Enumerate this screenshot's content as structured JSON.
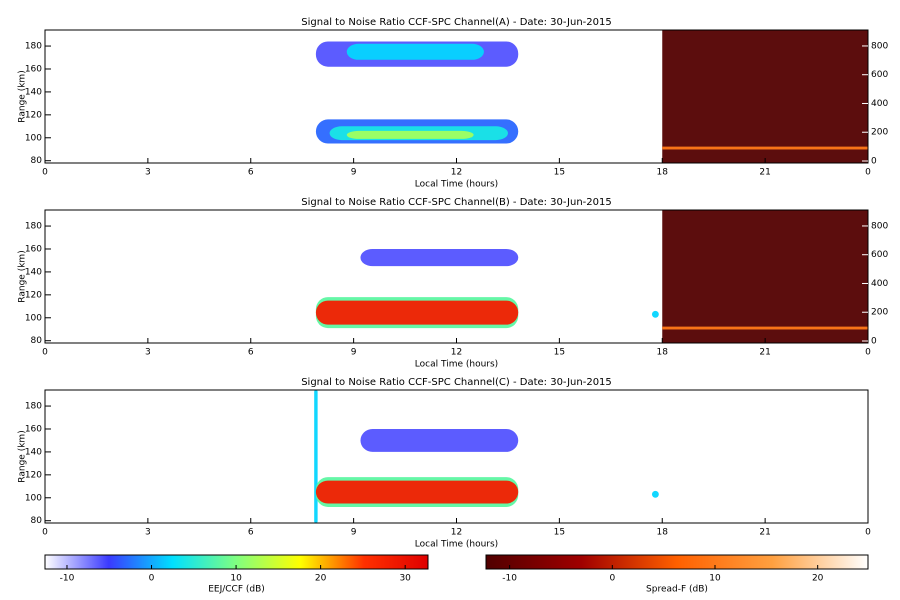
{
  "chart_data": [
    {
      "type": "heatmap",
      "title": "Signal to Noise Ratio CCF-SPC Channel(A) - Date: 30-Jun-2015",
      "xlabel": "Local Time (hours)",
      "ylabel": "Range (km)",
      "xlim": [
        0,
        24
      ],
      "xticks": [
        0,
        3,
        6,
        9,
        12,
        15,
        18,
        21,
        {
          "value": 24,
          "label": "0"
        }
      ],
      "ylim": [
        78,
        194
      ],
      "yticks": [
        80,
        100,
        120,
        140,
        160,
        180
      ],
      "y2lim": [
        -14,
        911
      ],
      "y2ticks": [
        0,
        200,
        400,
        600,
        800
      ],
      "cells": [
        {
          "x": [
            7.9,
            13.8
          ],
          "y": [
            95,
            116
          ],
          "value": -3,
          "colorbar": 0
        },
        {
          "x": [
            8.3,
            13.5
          ],
          "y": [
            98,
            110
          ],
          "value": 4,
          "colorbar": 0
        },
        {
          "x": [
            8.8,
            12.5
          ],
          "y": [
            99,
            106
          ],
          "value": 12,
          "colorbar": 0
        },
        {
          "x": [
            7.9,
            13.8
          ],
          "y": [
            162,
            184
          ],
          "value": -6,
          "colorbar": 0
        },
        {
          "x": [
            8.8,
            12.8
          ],
          "y": [
            168,
            182
          ],
          "value": 2,
          "colorbar": 0
        },
        {
          "x": [
            18,
            24
          ],
          "y": [
            -14,
            911
          ],
          "value": -12,
          "colorbar": 1,
          "axis": "y2"
        },
        {
          "x": [
            18,
            24
          ],
          "y": [
            80,
            100
          ],
          "value": 10,
          "colorbar": 1,
          "axis": "y2"
        }
      ]
    },
    {
      "type": "heatmap",
      "title": "Signal to Noise Ratio CCF-SPC Channel(B) - Date: 30-Jun-2015",
      "xlabel": "Local Time (hours)",
      "ylabel": "Range (km)",
      "xlim": [
        0,
        24
      ],
      "xticks": [
        0,
        3,
        6,
        9,
        12,
        15,
        18,
        21,
        {
          "value": 24,
          "label": "0"
        }
      ],
      "ylim": [
        78,
        194
      ],
      "yticks": [
        80,
        100,
        120,
        140,
        160,
        180
      ],
      "y2lim": [
        -14,
        911
      ],
      "y2ticks": [
        0,
        200,
        400,
        600,
        800
      ],
      "cells": [
        {
          "x": [
            7.9,
            13.8
          ],
          "y": [
            91,
            118
          ],
          "value": 8,
          "colorbar": 0
        },
        {
          "x": [
            7.9,
            13.8
          ],
          "y": [
            94,
            115
          ],
          "value": 28,
          "colorbar": 0
        },
        {
          "x": [
            9.2,
            13.8
          ],
          "y": [
            145,
            160
          ],
          "value": -6,
          "colorbar": 0
        },
        {
          "x": [
            17.7,
            17.9
          ],
          "y": [
            100,
            106
          ],
          "value": 2,
          "colorbar": 0
        },
        {
          "x": [
            18,
            24
          ],
          "y": [
            -14,
            911
          ],
          "value": -12,
          "colorbar": 1,
          "axis": "y2"
        },
        {
          "x": [
            18,
            24
          ],
          "y": [
            80,
            100
          ],
          "value": 10,
          "colorbar": 1,
          "axis": "y2"
        }
      ]
    },
    {
      "type": "heatmap",
      "title": "Signal to Noise Ratio CCF-SPC Channel(C) - Date: 30-Jun-2015",
      "xlabel": "Local Time (hours)",
      "ylabel": "Range (km)",
      "xlim": [
        0,
        24
      ],
      "xticks": [
        0,
        3,
        6,
        9,
        12,
        15,
        18,
        21,
        {
          "value": 24,
          "label": "0"
        }
      ],
      "ylim": [
        78,
        194
      ],
      "yticks": [
        80,
        100,
        120,
        140,
        160,
        180
      ],
      "cells": [
        {
          "x": [
            7.85,
            7.95
          ],
          "y": [
            78,
            194
          ],
          "value": 2,
          "colorbar": 0
        },
        {
          "x": [
            7.9,
            13.8
          ],
          "y": [
            92,
            118
          ],
          "value": 8,
          "colorbar": 0
        },
        {
          "x": [
            7.9,
            13.8
          ],
          "y": [
            95,
            115
          ],
          "value": 28,
          "colorbar": 0
        },
        {
          "x": [
            9.2,
            13.8
          ],
          "y": [
            140,
            160
          ],
          "value": -6,
          "colorbar": 0
        },
        {
          "x": [
            17.7,
            17.9
          ],
          "y": [
            100,
            106
          ],
          "value": 2,
          "colorbar": 0
        }
      ]
    },
    {
      "type": "colorbar",
      "label": "EEJ/CCF (dB)",
      "lim": [
        -12.6,
        32.7
      ],
      "ticks": [
        -10,
        0,
        10,
        20,
        30
      ],
      "colors": [
        "#ffffff",
        "#3a3aff",
        "#00e0ff",
        "#80ff80",
        "#ffff00",
        "#ff3000",
        "#e00000"
      ]
    },
    {
      "type": "colorbar",
      "label": "Spread-F (dB)",
      "lim": [
        -12.3,
        24.9
      ],
      "ticks": [
        -10,
        0,
        10,
        20
      ],
      "colors": [
        "#500000",
        "#a00000",
        "#ff6000",
        "#ffa040",
        "#ffffff"
      ]
    }
  ]
}
